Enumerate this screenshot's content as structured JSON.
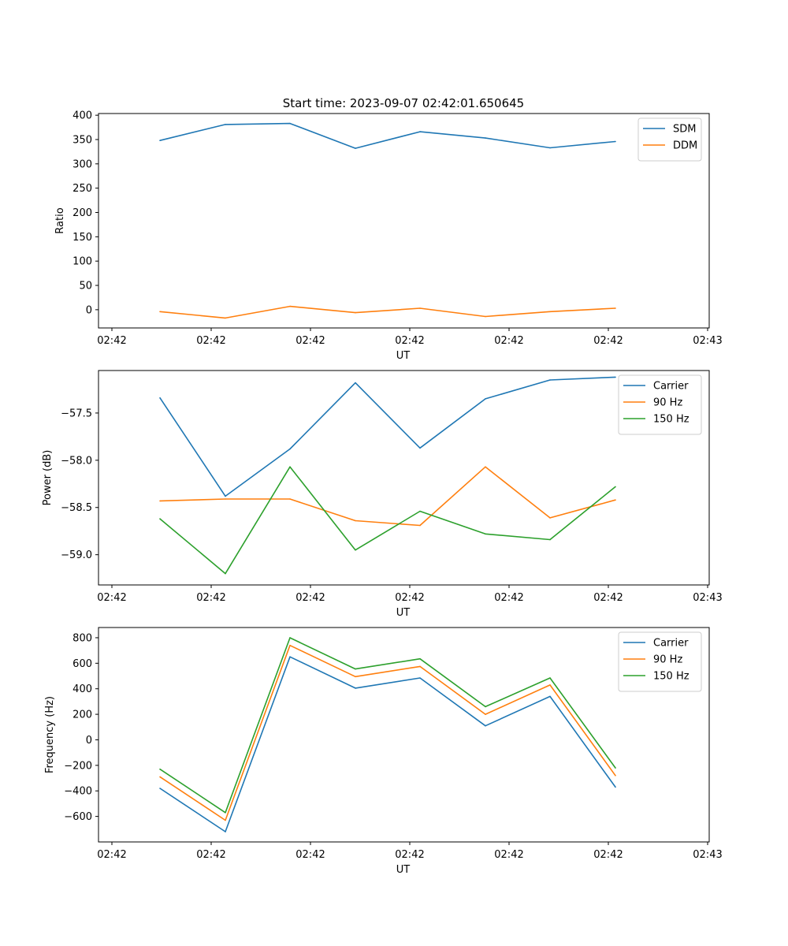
{
  "title": "Start time: 2023-09-07 02:42:01.650645",
  "chart_data": [
    {
      "type": "line",
      "xlabel": "UT",
      "ylabel": "Ratio",
      "x_tick_labels": [
        "02:42",
        "02:42",
        "02:42",
        "02:42",
        "02:42",
        "02:42",
        "02:43"
      ],
      "y_ticks": [
        0,
        50,
        100,
        150,
        200,
        250,
        300,
        350,
        400
      ],
      "ylim": [
        -37.5,
        403.5
      ],
      "x_index": [
        0,
        1,
        2,
        3,
        4,
        5,
        6,
        7
      ],
      "series": [
        {
          "name": "SDM",
          "color": "#1f77b4",
          "values": [
            348,
            381,
            383,
            332,
            366,
            353,
            333,
            346
          ]
        },
        {
          "name": "DDM",
          "color": "#ff7f0e",
          "values": [
            -4,
            -17,
            7,
            -6,
            3,
            -14,
            -4,
            3
          ]
        }
      ]
    },
    {
      "type": "line",
      "xlabel": "UT",
      "ylabel": "Power (dB)",
      "x_tick_labels": [
        "02:42",
        "02:42",
        "02:42",
        "02:42",
        "02:42",
        "02:42",
        "02:43"
      ],
      "y_ticks": [
        -59.0,
        -58.5,
        -58.0,
        -57.5
      ],
      "y_tick_labels": [
        "−59.0",
        "−58.5",
        "−58.0",
        "−57.5"
      ],
      "ylim": [
        -59.32,
        -57.05
      ],
      "x_index": [
        0,
        1,
        2,
        3,
        4,
        5,
        6,
        7
      ],
      "series": [
        {
          "name": "Carrier",
          "color": "#1f77b4",
          "values": [
            -57.34,
            -58.38,
            -57.88,
            -57.18,
            -57.87,
            -57.35,
            -57.15,
            -57.12
          ]
        },
        {
          "name": "90 Hz",
          "color": "#ff7f0e",
          "values": [
            -58.43,
            -58.41,
            -58.41,
            -58.64,
            -58.69,
            -58.07,
            -58.61,
            -58.42
          ]
        },
        {
          "name": "150 Hz",
          "color": "#2ca02c",
          "values": [
            -58.62,
            -59.2,
            -58.07,
            -58.95,
            -58.54,
            -58.78,
            -58.84,
            -58.28
          ]
        }
      ]
    },
    {
      "type": "line",
      "xlabel": "UT",
      "ylabel": "Frequency (Hz)",
      "x_tick_labels": [
        "02:42",
        "02:42",
        "02:42",
        "02:42",
        "02:42",
        "02:42",
        "02:43"
      ],
      "y_ticks": [
        -600,
        -400,
        -200,
        0,
        200,
        400,
        600,
        800
      ],
      "y_tick_labels": [
        "−600",
        "−400",
        "−200",
        "0",
        "200",
        "400",
        "600",
        "800"
      ],
      "ylim": [
        -800,
        880
      ],
      "x_index": [
        0,
        1,
        2,
        3,
        4,
        5,
        6,
        7
      ],
      "series": [
        {
          "name": "Carrier",
          "color": "#1f77b4",
          "values": [
            -380,
            -720,
            650,
            405,
            485,
            110,
            340,
            -370
          ]
        },
        {
          "name": "90 Hz",
          "color": "#ff7f0e",
          "values": [
            -290,
            -630,
            740,
            495,
            575,
            200,
            430,
            -280
          ]
        },
        {
          "name": "150 Hz",
          "color": "#2ca02c",
          "values": [
            -230,
            -570,
            800,
            555,
            635,
            260,
            485,
            -220
          ]
        }
      ]
    }
  ]
}
